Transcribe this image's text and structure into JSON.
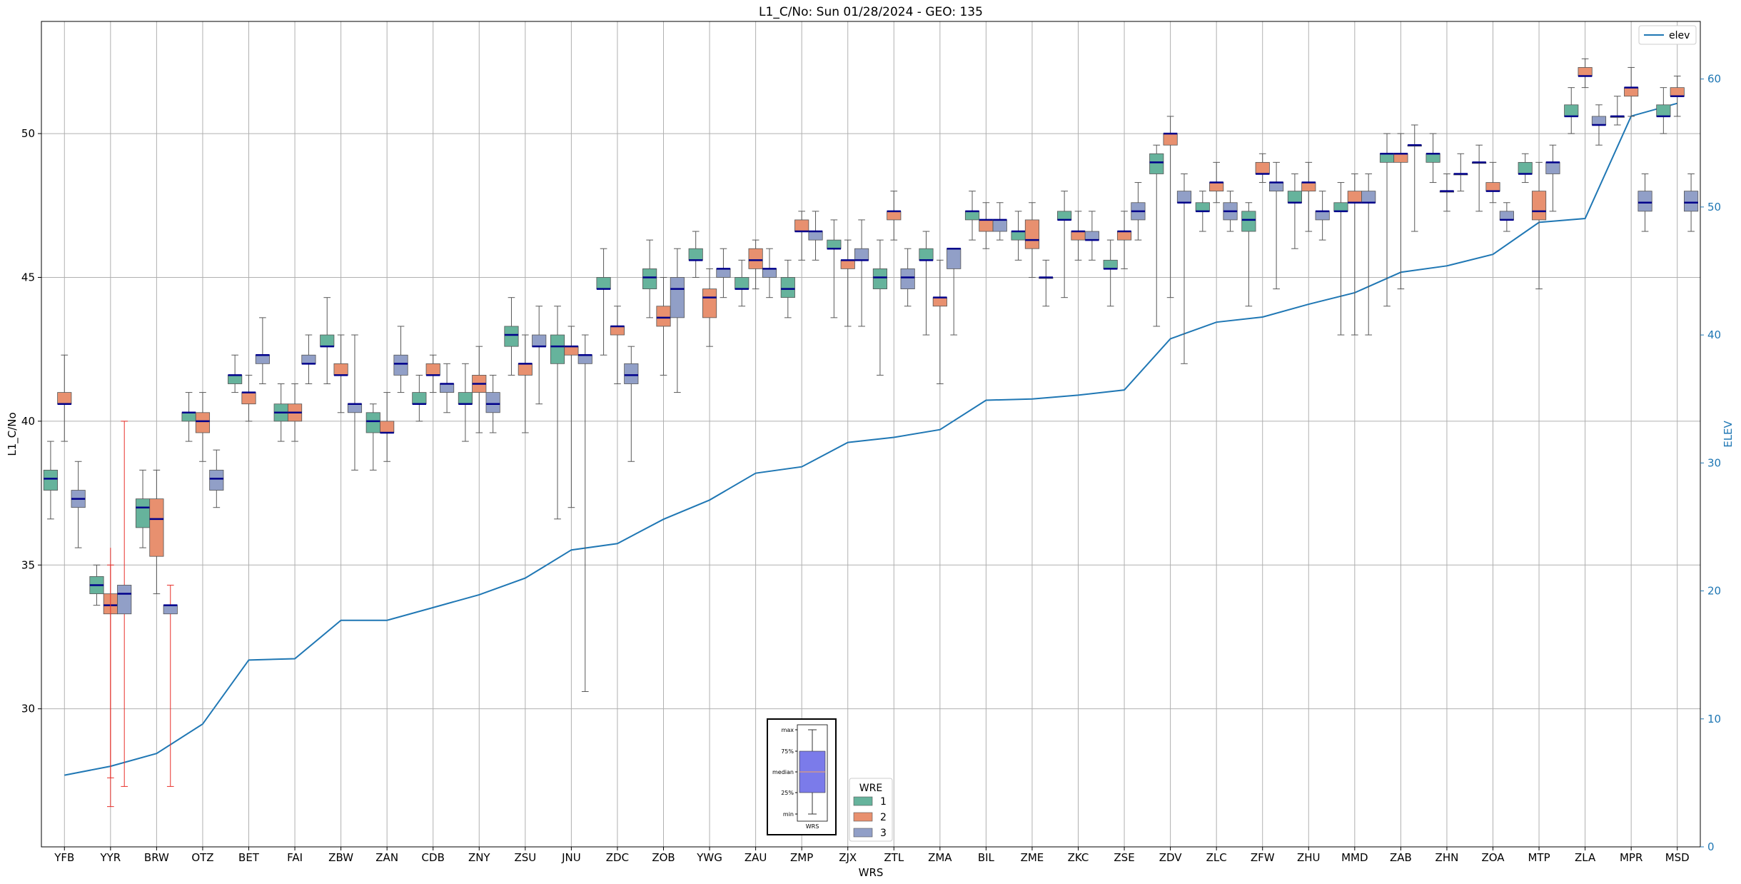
{
  "chart_data": {
    "type": "box",
    "title": "L1_C/No: Sun 01/28/2024 - GEO: 135",
    "xlabel": "WRS",
    "ylabel": "L1_C/No",
    "y2label": "ELEV",
    "ylim": [
      25.2,
      53.9
    ],
    "y2lim": [
      0,
      64.5
    ],
    "yticks": [
      30,
      35,
      40,
      45,
      50
    ],
    "y2ticks": [
      0,
      10,
      20,
      30,
      40,
      50,
      60
    ],
    "grid": true,
    "categories": [
      "YFB",
      "YYR",
      "BRW",
      "OTZ",
      "BET",
      "FAI",
      "ZBW",
      "ZAN",
      "CDB",
      "ZNY",
      "ZSU",
      "JNU",
      "ZDC",
      "ZOB",
      "YWG",
      "ZAU",
      "ZMP",
      "ZJX",
      "ZTL",
      "ZMA",
      "BIL",
      "ZME",
      "ZKC",
      "ZSE",
      "ZDV",
      "ZLC",
      "ZFW",
      "ZHU",
      "MMD",
      "ZAB",
      "ZHN",
      "ZOA",
      "MTP",
      "ZLA",
      "MPR",
      "MSD"
    ],
    "wre_colors": {
      "1": "#66b39c",
      "2": "#e8906f",
      "3": "#919fc7"
    },
    "median_color": "#00008b",
    "whisker_color": "#595959",
    "alert_whisker_color": "#e8302a",
    "boxes": [
      {
        "s": "YFB",
        "w": 1,
        "min": 36.6,
        "q1": 37.6,
        "med": 38.0,
        "q3": 38.3,
        "max": 39.3
      },
      {
        "s": "YFB",
        "w": 2,
        "min": 39.3,
        "q1": 40.6,
        "med": 40.6,
        "q3": 41.0,
        "max": 42.3
      },
      {
        "s": "YFB",
        "w": 3,
        "min": 35.6,
        "q1": 37.0,
        "med": 37.3,
        "q3": 37.6,
        "max": 38.6
      },
      {
        "s": "YYR",
        "w": 1,
        "min": 33.6,
        "q1": 34.0,
        "med": 34.3,
        "q3": 34.6,
        "max": 35.0
      },
      {
        "s": "YYR",
        "w": 2,
        "min": 27.6,
        "q1": 33.3,
        "med": 33.6,
        "q3": 34.0,
        "max": 35.0,
        "alert": true
      },
      {
        "s": "YYR",
        "w": 3,
        "min": 27.3,
        "q1": 33.3,
        "med": 34.0,
        "q3": 34.3,
        "max": 40.0,
        "alert": true
      },
      {
        "s": "YYR",
        "w": "2-lower",
        "min": 26.6,
        "q1": 33.6,
        "med": 33.6,
        "q3": 33.6,
        "max": 35.6,
        "alert": true
      },
      {
        "s": "BRW",
        "w": 1,
        "min": 35.6,
        "q1": 36.3,
        "med": 37.0,
        "q3": 37.3,
        "max": 38.3
      },
      {
        "s": "BRW",
        "w": 2,
        "min": 34.0,
        "q1": 35.3,
        "med": 36.6,
        "q3": 37.3,
        "max": 38.3
      },
      {
        "s": "BRW",
        "w": 3,
        "min": 27.3,
        "q1": 33.3,
        "med": 33.6,
        "q3": 33.6,
        "max": 34.3,
        "alert": true
      },
      {
        "s": "OTZ",
        "w": 1,
        "min": 39.3,
        "q1": 40.0,
        "med": 40.3,
        "q3": 40.3,
        "max": 41.0
      },
      {
        "s": "OTZ",
        "w": 2,
        "min": 38.6,
        "q1": 39.6,
        "med": 40.0,
        "q3": 40.3,
        "max": 41.0
      },
      {
        "s": "OTZ",
        "w": 3,
        "min": 37.0,
        "q1": 37.6,
        "med": 38.0,
        "q3": 38.3,
        "max": 39.0
      },
      {
        "s": "BET",
        "w": 1,
        "min": 41.0,
        "q1": 41.3,
        "med": 41.6,
        "q3": 41.6,
        "max": 42.3
      },
      {
        "s": "BET",
        "w": 2,
        "min": 40.0,
        "q1": 40.6,
        "med": 41.0,
        "q3": 41.0,
        "max": 41.6
      },
      {
        "s": "BET",
        "w": 3,
        "min": 41.3,
        "q1": 42.0,
        "med": 42.3,
        "q3": 42.3,
        "max": 43.6
      },
      {
        "s": "FAI",
        "w": 1,
        "min": 39.3,
        "q1": 40.0,
        "med": 40.3,
        "q3": 40.6,
        "max": 41.3
      },
      {
        "s": "FAI",
        "w": 2,
        "min": 39.3,
        "q1": 40.0,
        "med": 40.3,
        "q3": 40.6,
        "max": 41.3
      },
      {
        "s": "FAI",
        "w": 3,
        "min": 41.3,
        "q1": 42.0,
        "med": 42.0,
        "q3": 42.3,
        "max": 43.0
      },
      {
        "s": "ZBW",
        "w": 1,
        "min": 41.3,
        "q1": 42.6,
        "med": 42.6,
        "q3": 43.0,
        "max": 44.3
      },
      {
        "s": "ZBW",
        "w": 2,
        "min": 40.3,
        "q1": 41.6,
        "med": 41.6,
        "q3": 42.0,
        "max": 43.0
      },
      {
        "s": "ZBW",
        "w": 3,
        "min": 38.3,
        "q1": 40.3,
        "med": 40.6,
        "q3": 40.6,
        "max": 43.0
      },
      {
        "s": "ZAN",
        "w": 1,
        "min": 38.3,
        "q1": 39.6,
        "med": 40.0,
        "q3": 40.3,
        "max": 40.6
      },
      {
        "s": "ZAN",
        "w": 2,
        "min": 38.6,
        "q1": 39.6,
        "med": 39.6,
        "q3": 40.0,
        "max": 41.0
      },
      {
        "s": "ZAN",
        "w": 3,
        "min": 41.0,
        "q1": 41.6,
        "med": 42.0,
        "q3": 42.3,
        "max": 43.3
      },
      {
        "s": "CDB",
        "w": 1,
        "min": 40.0,
        "q1": 40.6,
        "med": 40.6,
        "q3": 41.0,
        "max": 41.6
      },
      {
        "s": "CDB",
        "w": 2,
        "min": 41.0,
        "q1": 41.6,
        "med": 41.6,
        "q3": 42.0,
        "max": 42.3
      },
      {
        "s": "CDB",
        "w": 3,
        "min": 40.3,
        "q1": 41.0,
        "med": 41.3,
        "q3": 41.3,
        "max": 42.0
      },
      {
        "s": "ZNY",
        "w": 1,
        "min": 39.3,
        "q1": 40.6,
        "med": 40.6,
        "q3": 41.0,
        "max": 42.0
      },
      {
        "s": "ZNY",
        "w": 2,
        "min": 39.6,
        "q1": 41.0,
        "med": 41.3,
        "q3": 41.6,
        "max": 42.6
      },
      {
        "s": "ZNY",
        "w": 3,
        "min": 39.6,
        "q1": 40.3,
        "med": 40.6,
        "q3": 41.0,
        "max": 41.6
      },
      {
        "s": "ZSU",
        "w": 1,
        "min": 41.6,
        "q1": 42.6,
        "med": 43.0,
        "q3": 43.3,
        "max": 44.3
      },
      {
        "s": "ZSU",
        "w": 2,
        "min": 39.6,
        "q1": 41.6,
        "med": 42.0,
        "q3": 42.0,
        "max": 43.0
      },
      {
        "s": "ZSU",
        "w": 3,
        "min": 40.6,
        "q1": 42.6,
        "med": 42.6,
        "q3": 43.0,
        "max": 44.0
      },
      {
        "s": "JNU",
        "w": 1,
        "min": 36.6,
        "q1": 42.0,
        "med": 42.6,
        "q3": 43.0,
        "max": 44.0
      },
      {
        "s": "JNU",
        "w": 2,
        "min": 37.0,
        "q1": 42.3,
        "med": 42.6,
        "q3": 42.6,
        "max": 43.3
      },
      {
        "s": "JNU",
        "w": 3,
        "min": 30.6,
        "q1": 42.0,
        "med": 42.3,
        "q3": 42.3,
        "max": 43.0
      },
      {
        "s": "ZDC",
        "w": 1,
        "min": 42.3,
        "q1": 44.6,
        "med": 44.6,
        "q3": 45.0,
        "max": 46.0
      },
      {
        "s": "ZDC",
        "w": 2,
        "min": 41.3,
        "q1": 43.0,
        "med": 43.3,
        "q3": 43.3,
        "max": 44.0
      },
      {
        "s": "ZDC",
        "w": 3,
        "min": 38.6,
        "q1": 41.3,
        "med": 41.6,
        "q3": 42.0,
        "max": 42.6
      },
      {
        "s": "ZOB",
        "w": 1,
        "min": 43.6,
        "q1": 44.6,
        "med": 45.0,
        "q3": 45.3,
        "max": 46.3
      },
      {
        "s": "ZOB",
        "w": 2,
        "min": 41.6,
        "q1": 43.3,
        "med": 43.6,
        "q3": 44.0,
        "max": 45.0
      },
      {
        "s": "ZOB",
        "w": 3,
        "min": 41.0,
        "q1": 43.6,
        "med": 44.6,
        "q3": 45.0,
        "max": 46.0
      },
      {
        "s": "YWG",
        "w": 1,
        "min": 45.0,
        "q1": 45.6,
        "med": 45.6,
        "q3": 46.0,
        "max": 46.6
      },
      {
        "s": "YWG",
        "w": 2,
        "min": 42.6,
        "q1": 43.6,
        "med": 44.3,
        "q3": 44.6,
        "max": 45.3
      },
      {
        "s": "YWG",
        "w": 3,
        "min": 44.3,
        "q1": 45.0,
        "med": 45.3,
        "q3": 45.3,
        "max": 46.0
      },
      {
        "s": "ZAU",
        "w": 1,
        "min": 44.0,
        "q1": 44.6,
        "med": 44.6,
        "q3": 45.0,
        "max": 45.6
      },
      {
        "s": "ZAU",
        "w": 2,
        "min": 44.6,
        "q1": 45.3,
        "med": 45.6,
        "q3": 46.0,
        "max": 46.3
      },
      {
        "s": "ZAU",
        "w": 3,
        "min": 44.3,
        "q1": 45.0,
        "med": 45.3,
        "q3": 45.3,
        "max": 46.0
      },
      {
        "s": "ZMP",
        "w": 1,
        "min": 43.6,
        "q1": 44.3,
        "med": 44.6,
        "q3": 45.0,
        "max": 45.6
      },
      {
        "s": "ZMP",
        "w": 2,
        "min": 45.6,
        "q1": 46.6,
        "med": 46.6,
        "q3": 47.0,
        "max": 47.3
      },
      {
        "s": "ZMP",
        "w": 3,
        "min": 45.6,
        "q1": 46.3,
        "med": 46.6,
        "q3": 46.6,
        "max": 47.3
      },
      {
        "s": "ZJX",
        "w": 1,
        "min": 43.6,
        "q1": 46.0,
        "med": 46.0,
        "q3": 46.3,
        "max": 47.0
      },
      {
        "s": "ZJX",
        "w": 2,
        "min": 43.3,
        "q1": 45.3,
        "med": 45.6,
        "q3": 45.6,
        "max": 46.3
      },
      {
        "s": "ZJX",
        "w": 3,
        "min": 43.3,
        "q1": 45.6,
        "med": 45.6,
        "q3": 46.0,
        "max": 47.0
      },
      {
        "s": "ZTL",
        "w": 1,
        "min": 41.6,
        "q1": 44.6,
        "med": 45.0,
        "q3": 45.3,
        "max": 46.3
      },
      {
        "s": "ZTL",
        "w": 2,
        "min": 46.3,
        "q1": 47.0,
        "med": 47.3,
        "q3": 47.3,
        "max": 48.0
      },
      {
        "s": "ZTL",
        "w": 3,
        "min": 44.0,
        "q1": 44.6,
        "med": 45.0,
        "q3": 45.3,
        "max": 46.0
      },
      {
        "s": "ZMA",
        "w": 1,
        "min": 43.0,
        "q1": 45.6,
        "med": 45.6,
        "q3": 46.0,
        "max": 46.6
      },
      {
        "s": "ZMA",
        "w": 2,
        "min": 41.3,
        "q1": 44.0,
        "med": 44.3,
        "q3": 44.3,
        "max": 45.6
      },
      {
        "s": "ZMA",
        "w": 3,
        "min": 43.0,
        "q1": 45.3,
        "med": 46.0,
        "q3": 46.0,
        "max": 46.0
      },
      {
        "s": "BIL",
        "w": 1,
        "min": 46.3,
        "q1": 47.0,
        "med": 47.3,
        "q3": 47.3,
        "max": 48.0
      },
      {
        "s": "BIL",
        "w": 2,
        "min": 46.0,
        "q1": 46.6,
        "med": 47.0,
        "q3": 47.0,
        "max": 47.6
      },
      {
        "s": "BIL",
        "w": 3,
        "min": 46.3,
        "q1": 46.6,
        "med": 47.0,
        "q3": 47.0,
        "max": 47.6
      },
      {
        "s": "ZME",
        "w": 1,
        "min": 45.6,
        "q1": 46.3,
        "med": 46.6,
        "q3": 46.6,
        "max": 47.3
      },
      {
        "s": "ZME",
        "w": 2,
        "min": 45.0,
        "q1": 46.0,
        "med": 46.3,
        "q3": 47.0,
        "max": 47.6
      },
      {
        "s": "ZME",
        "w": 3,
        "min": 44.0,
        "q1": 45.0,
        "med": 45.0,
        "q3": 45.0,
        "max": 45.6
      },
      {
        "s": "ZKC",
        "w": 1,
        "min": 44.3,
        "q1": 47.0,
        "med": 47.0,
        "q3": 47.3,
        "max": 48.0
      },
      {
        "s": "ZKC",
        "w": 2,
        "min": 45.6,
        "q1": 46.3,
        "med": 46.6,
        "q3": 46.6,
        "max": 47.3
      },
      {
        "s": "ZKC",
        "w": 3,
        "min": 45.6,
        "q1": 46.3,
        "med": 46.3,
        "q3": 46.6,
        "max": 47.3
      },
      {
        "s": "ZSE",
        "w": 1,
        "min": 44.0,
        "q1": 45.3,
        "med": 45.3,
        "q3": 45.6,
        "max": 46.3
      },
      {
        "s": "ZSE",
        "w": 2,
        "min": 45.3,
        "q1": 46.3,
        "med": 46.6,
        "q3": 46.6,
        "max": 47.3
      },
      {
        "s": "ZSE",
        "w": 3,
        "min": 46.3,
        "q1": 47.0,
        "med": 47.3,
        "q3": 47.6,
        "max": 48.3
      },
      {
        "s": "ZDV",
        "w": 1,
        "min": 43.3,
        "q1": 48.6,
        "med": 49.0,
        "q3": 49.3,
        "max": 49.6
      },
      {
        "s": "ZDV",
        "w": 2,
        "min": 44.3,
        "q1": 49.6,
        "med": 50.0,
        "q3": 50.0,
        "max": 50.6
      },
      {
        "s": "ZDV",
        "w": 3,
        "min": 42.0,
        "q1": 47.6,
        "med": 47.6,
        "q3": 48.0,
        "max": 48.6
      },
      {
        "s": "ZLC",
        "w": 1,
        "min": 46.6,
        "q1": 47.3,
        "med": 47.3,
        "q3": 47.6,
        "max": 48.0
      },
      {
        "s": "ZLC",
        "w": 2,
        "min": 47.6,
        "q1": 48.0,
        "med": 48.3,
        "q3": 48.3,
        "max": 49.0
      },
      {
        "s": "ZLC",
        "w": 3,
        "min": 46.6,
        "q1": 47.0,
        "med": 47.3,
        "q3": 47.6,
        "max": 48.0
      },
      {
        "s": "ZFW",
        "w": 1,
        "min": 44.0,
        "q1": 46.6,
        "med": 47.0,
        "q3": 47.3,
        "max": 47.6
      },
      {
        "s": "ZFW",
        "w": 2,
        "min": 48.3,
        "q1": 48.6,
        "med": 48.6,
        "q3": 49.0,
        "max": 49.3
      },
      {
        "s": "ZFW",
        "w": 3,
        "min": 44.6,
        "q1": 48.0,
        "med": 48.3,
        "q3": 48.3,
        "max": 49.0
      },
      {
        "s": "ZHU",
        "w": 1,
        "min": 46.0,
        "q1": 47.6,
        "med": 47.6,
        "q3": 48.0,
        "max": 48.6
      },
      {
        "s": "ZHU",
        "w": 2,
        "min": 46.6,
        "q1": 48.0,
        "med": 48.3,
        "q3": 48.3,
        "max": 49.0
      },
      {
        "s": "ZHU",
        "w": 3,
        "min": 46.3,
        "q1": 47.0,
        "med": 47.3,
        "q3": 47.3,
        "max": 48.0
      },
      {
        "s": "MMD",
        "w": 1,
        "min": 43.0,
        "q1": 47.3,
        "med": 47.3,
        "q3": 47.6,
        "max": 48.3
      },
      {
        "s": "MMD",
        "w": 2,
        "min": 43.0,
        "q1": 47.6,
        "med": 47.6,
        "q3": 48.0,
        "max": 48.6
      },
      {
        "s": "MMD",
        "w": 3,
        "min": 43.0,
        "q1": 47.6,
        "med": 47.6,
        "q3": 48.0,
        "max": 48.6
      },
      {
        "s": "ZAB",
        "w": 1,
        "min": 44.0,
        "q1": 49.0,
        "med": 49.3,
        "q3": 49.3,
        "max": 50.0
      },
      {
        "s": "ZAB",
        "w": 2,
        "min": 44.6,
        "q1": 49.0,
        "med": 49.3,
        "q3": 49.3,
        "max": 50.0
      },
      {
        "s": "ZAB",
        "w": 3,
        "min": 46.6,
        "q1": 49.6,
        "med": 49.6,
        "q3": 49.6,
        "max": 50.3
      },
      {
        "s": "ZHN",
        "w": 1,
        "min": 48.3,
        "q1": 49.0,
        "med": 49.3,
        "q3": 49.3,
        "max": 50.0
      },
      {
        "s": "ZHN",
        "w": 2,
        "min": 47.3,
        "q1": 48.0,
        "med": 48.0,
        "q3": 48.0,
        "max": 48.6
      },
      {
        "s": "ZHN",
        "w": 3,
        "min": 48.0,
        "q1": 48.6,
        "med": 48.6,
        "q3": 48.6,
        "max": 49.3
      },
      {
        "s": "ZOA",
        "w": 1,
        "min": 47.3,
        "q1": 49.0,
        "med": 49.0,
        "q3": 49.0,
        "max": 49.6
      },
      {
        "s": "ZOA",
        "w": 2,
        "min": 47.6,
        "q1": 48.0,
        "med": 48.0,
        "q3": 48.3,
        "max": 49.0
      },
      {
        "s": "ZOA",
        "w": 3,
        "min": 46.6,
        "q1": 47.0,
        "med": 47.0,
        "q3": 47.3,
        "max": 47.6
      },
      {
        "s": "MTP",
        "w": 1,
        "min": 48.3,
        "q1": 48.6,
        "med": 48.6,
        "q3": 49.0,
        "max": 49.3
      },
      {
        "s": "MTP",
        "w": 2,
        "min": 44.6,
        "q1": 47.0,
        "med": 47.3,
        "q3": 48.0,
        "max": 49.0
      },
      {
        "s": "MTP",
        "w": 3,
        "min": 47.3,
        "q1": 48.6,
        "med": 49.0,
        "q3": 49.0,
        "max": 49.6
      },
      {
        "s": "ZLA",
        "w": 1,
        "min": 50.0,
        "q1": 50.6,
        "med": 50.6,
        "q3": 51.0,
        "max": 51.6
      },
      {
        "s": "ZLA",
        "w": 2,
        "min": 51.6,
        "q1": 52.0,
        "med": 52.0,
        "q3": 52.3,
        "max": 52.6
      },
      {
        "s": "ZLA",
        "w": 3,
        "min": 49.6,
        "q1": 50.3,
        "med": 50.3,
        "q3": 50.6,
        "max": 51.0
      },
      {
        "s": "MPR",
        "w": 1,
        "min": 50.3,
        "q1": 50.6,
        "med": 50.6,
        "q3": 50.6,
        "max": 51.3
      },
      {
        "s": "MPR",
        "w": 2,
        "min": 50.6,
        "q1": 51.3,
        "med": 51.6,
        "q3": 51.6,
        "max": 52.3
      },
      {
        "s": "MPR",
        "w": 3,
        "min": 46.6,
        "q1": 47.3,
        "med": 47.6,
        "q3": 48.0,
        "max": 48.6
      },
      {
        "s": "MSD",
        "w": 1,
        "min": 50.0,
        "q1": 50.6,
        "med": 50.6,
        "q3": 51.0,
        "max": 51.6
      },
      {
        "s": "MSD",
        "w": 2,
        "min": 50.6,
        "q1": 51.3,
        "med": 51.3,
        "q3": 51.6,
        "max": 52.0
      },
      {
        "s": "MSD",
        "w": 3,
        "min": 46.6,
        "q1": 47.3,
        "med": 47.6,
        "q3": 48.0,
        "max": 48.6
      }
    ],
    "elev_series": {
      "name": "elev",
      "color": "#1f77b4",
      "values": [
        5.6,
        6.3,
        7.3,
        9.6,
        14.6,
        14.7,
        17.7,
        17.7,
        18.7,
        19.7,
        21.0,
        23.2,
        23.7,
        25.6,
        27.1,
        29.2,
        29.7,
        31.6,
        32.0,
        32.6,
        34.9,
        35.0,
        35.3,
        35.7,
        39.7,
        41.0,
        41.4,
        42.4,
        43.3,
        44.9,
        45.4,
        46.3,
        48.8,
        49.1,
        57.1,
        58.1
      ]
    },
    "legend_elev": {
      "label": "elev",
      "position": "top-right"
    },
    "legend_wre": {
      "title": "WRE",
      "items": [
        "1",
        "2",
        "3"
      ]
    },
    "key_box": {
      "labels": [
        "max",
        "75%",
        "median",
        "25%",
        "min"
      ],
      "xlabel": "WRS",
      "fill": "#7b7bea",
      "median_color": "#f4a460"
    }
  }
}
